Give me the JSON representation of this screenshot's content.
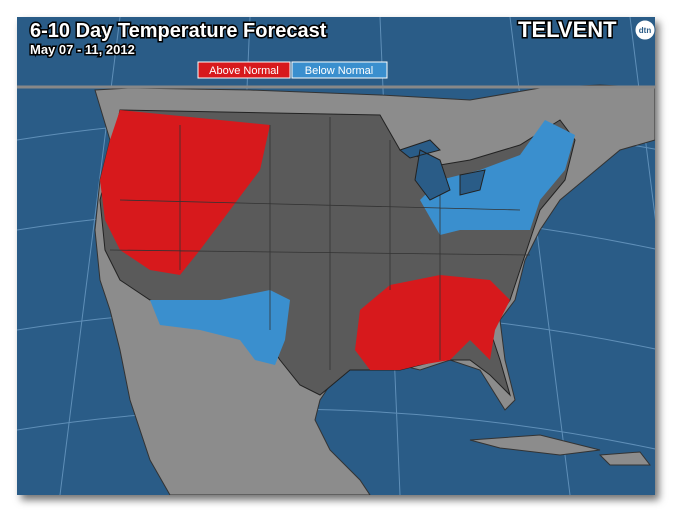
{
  "header": {
    "title": "6-10 Day Temperature Forecast",
    "date": "May 07 - 11, 2012",
    "logo": "TELVENT",
    "logo_badge": "dtn"
  },
  "legend": [
    {
      "label": "Above Normal",
      "color": "#d7191c"
    },
    {
      "label": "Below Normal",
      "color": "#3a8fce"
    }
  ]
}
